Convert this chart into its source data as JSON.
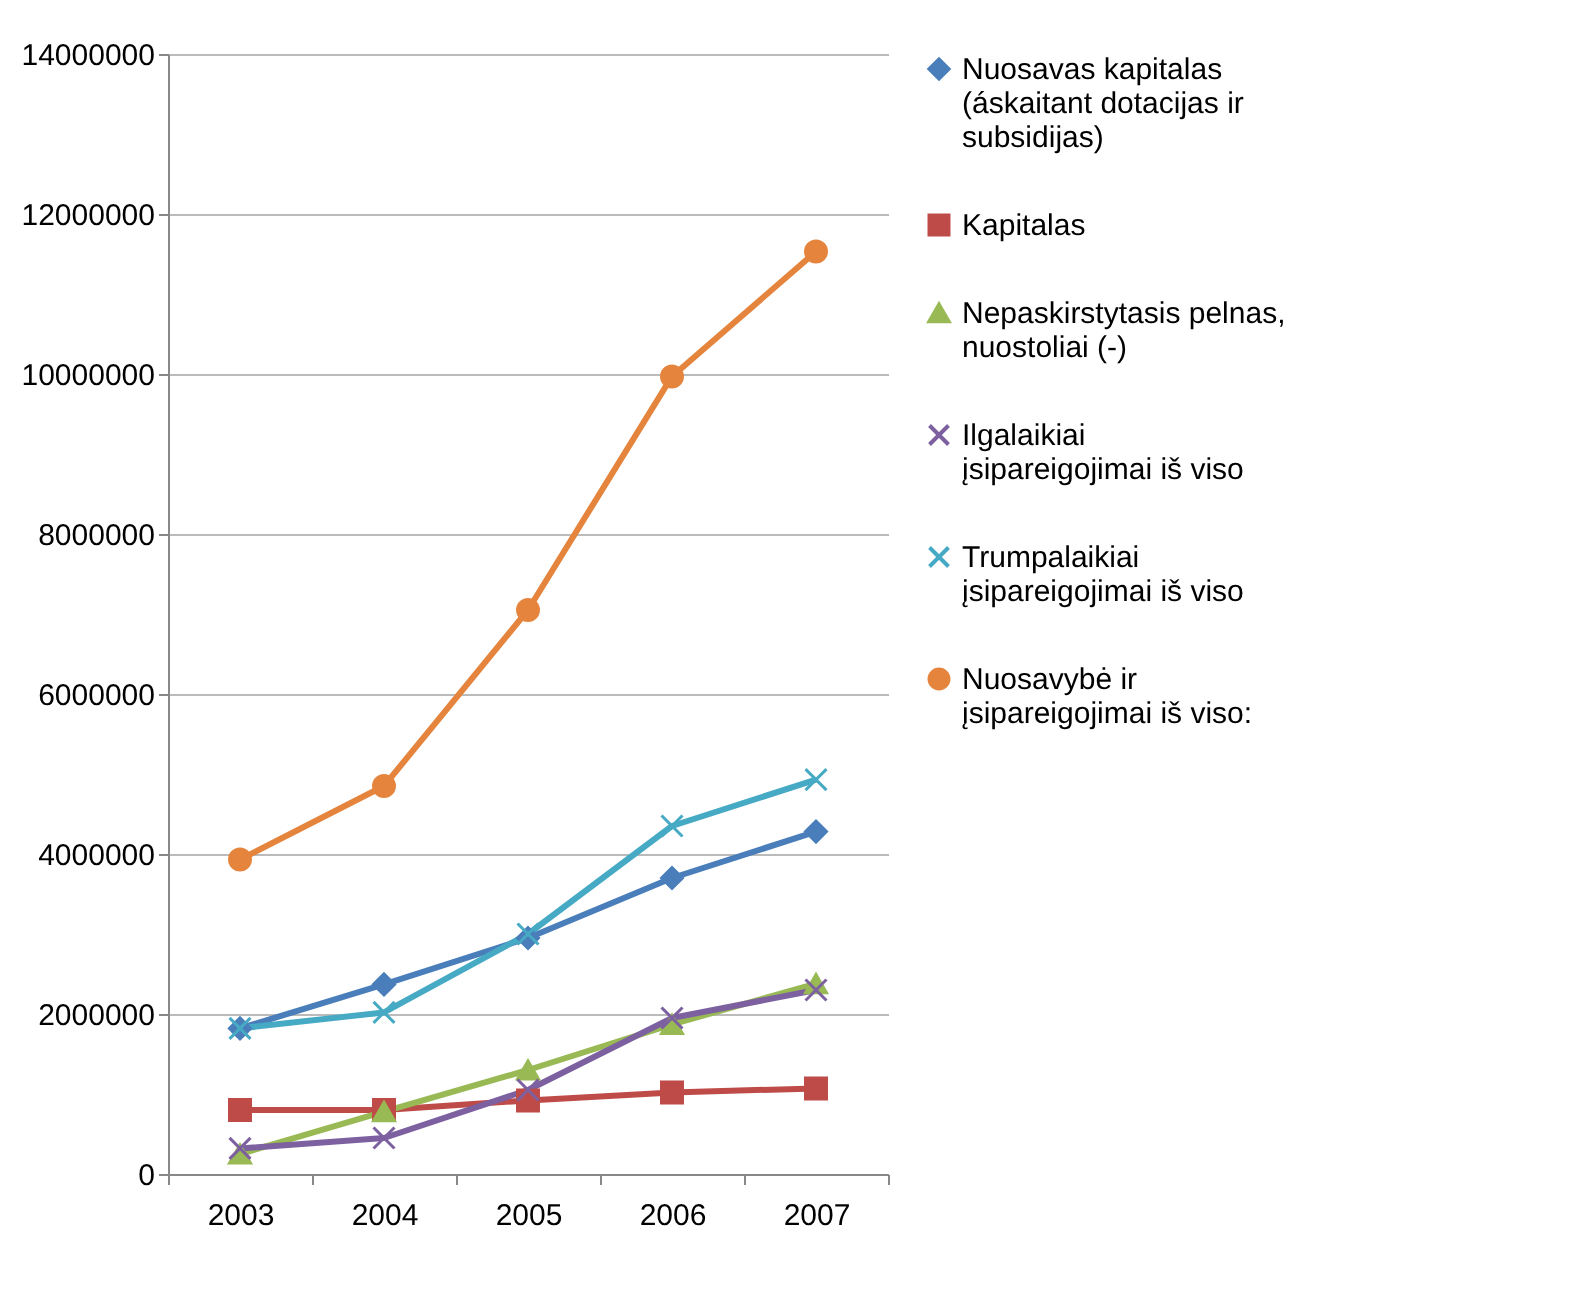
{
  "chart_data": {
    "type": "line",
    "categories": [
      "2003",
      "2004",
      "2005",
      "2006",
      "2007"
    ],
    "ylim": [
      0,
      14000000
    ],
    "yticks": [
      0,
      2000000,
      4000000,
      6000000,
      8000000,
      10000000,
      12000000,
      14000000
    ],
    "grid": "y",
    "legend": "right",
    "series": [
      {
        "name": "Nuosavas kapitalas (áskaitant dotacijas ir subsidijas)",
        "color": "#4a7ebb",
        "marker": "diamond",
        "values": [
          1820000,
          2370000,
          2950000,
          3700000,
          4280000
        ]
      },
      {
        "name": "Kapitalas",
        "color": "#be4b48",
        "marker": "square",
        "values": [
          800000,
          800000,
          920000,
          1020000,
          1070000
        ]
      },
      {
        "name": "Nepaskirstytasis pelnas, nuostoliai (-)",
        "color": "#98b954",
        "marker": "triangle",
        "values": [
          250000,
          780000,
          1300000,
          1870000,
          2380000
        ]
      },
      {
        "name": "Ilgalaikiai įsipareigojimai iš viso",
        "color": "#7d60a0",
        "marker": "cross",
        "values": [
          320000,
          450000,
          1050000,
          1950000,
          2300000
        ]
      },
      {
        "name": "Trumpalaikiai įsipareigojimai iš viso",
        "color": "#46aac5",
        "marker": "cross",
        "values": [
          1820000,
          2020000,
          3000000,
          4350000,
          4930000
        ]
      },
      {
        "name": "Nuosavybė ir įsipareigojimai iš viso:",
        "color": "#e5843c",
        "marker": "circle",
        "values": [
          3930000,
          4850000,
          7050000,
          9970000,
          11530000
        ]
      }
    ]
  }
}
